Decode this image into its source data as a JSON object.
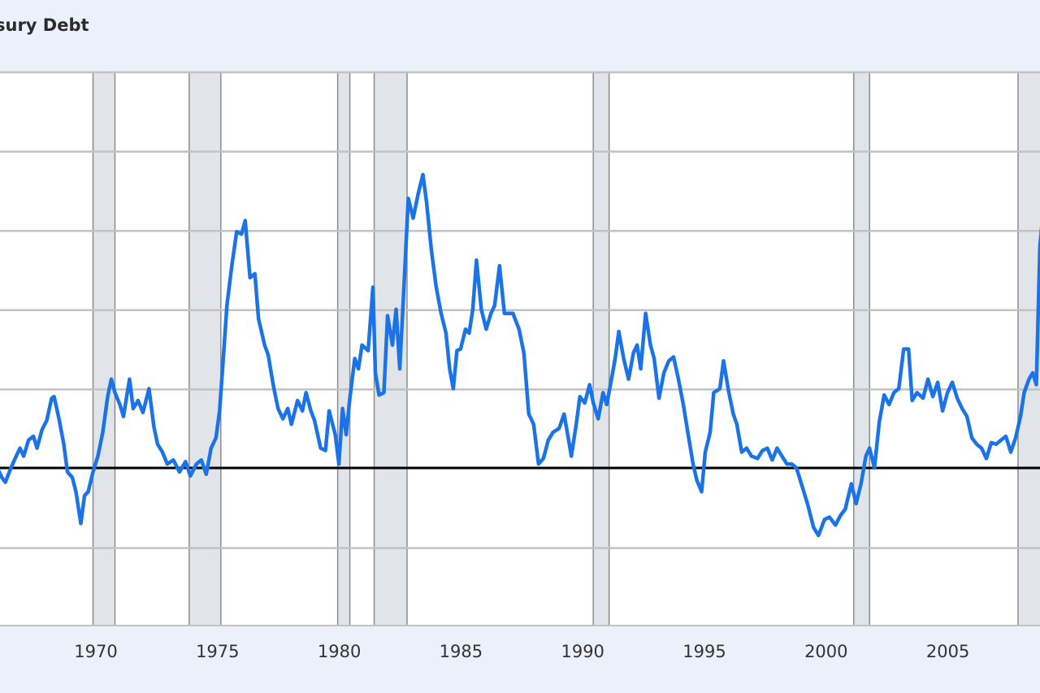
{
  "title_fragment": "sury Debt",
  "colors": {
    "background": "#eaf1fb",
    "plot_background": "#ffffff",
    "grid": "#c2c2c2",
    "recession_fill": "#e1e5ea",
    "recession_edge": "#8c8c8c",
    "series": "#1a73e8",
    "zero_line": "#000000"
  },
  "chart_data": {
    "type": "line",
    "title": "sury Debt",
    "xlabel": "",
    "ylabel": "",
    "x_range": [
      1965.85,
      2008.95
    ],
    "x_ticks": [
      1970,
      1975,
      1980,
      1985,
      1990,
      1995,
      2000,
      2005
    ],
    "x_tick_labels": [
      "1970",
      "1975",
      "1980",
      "1985",
      "1990",
      "1995",
      "2000",
      "2005"
    ],
    "y_gridlines": 7,
    "grid": true,
    "legend": "none",
    "reference_line": {
      "value": 0,
      "position": "horizontal"
    },
    "y_values_note": "y-axis tick labels not visible; series values given relative to the zero line in units of one gridline spacing",
    "recession_bands": [
      {
        "start": 1969.95,
        "end": 1970.85
      },
      {
        "start": 1973.9,
        "end": 1975.2
      },
      {
        "start": 1980.0,
        "end": 1980.5
      },
      {
        "start": 1981.5,
        "end": 1982.85
      },
      {
        "start": 1990.5,
        "end": 1991.15
      },
      {
        "start": 2001.2,
        "end": 2001.85
      },
      {
        "start": 2007.95,
        "end": 2008.95
      }
    ],
    "series": [
      {
        "points": [
          [
            1965.85,
            0.02
          ],
          [
            1966.0,
            0.01
          ],
          [
            1966.2,
            -0.12
          ],
          [
            1966.35,
            -0.18
          ],
          [
            1966.55,
            -0.02
          ],
          [
            1966.75,
            0.12
          ],
          [
            1966.95,
            0.25
          ],
          [
            1967.1,
            0.15
          ],
          [
            1967.3,
            0.35
          ],
          [
            1967.5,
            0.4
          ],
          [
            1967.65,
            0.25
          ],
          [
            1967.85,
            0.48
          ],
          [
            1968.05,
            0.6
          ],
          [
            1968.25,
            0.88
          ],
          [
            1968.35,
            0.9
          ],
          [
            1968.55,
            0.62
          ],
          [
            1968.75,
            0.3
          ],
          [
            1968.9,
            -0.05
          ],
          [
            1969.1,
            -0.12
          ],
          [
            1969.25,
            -0.3
          ],
          [
            1969.45,
            -0.7
          ],
          [
            1969.6,
            -0.35
          ],
          [
            1969.75,
            -0.3
          ],
          [
            1969.95,
            -0.05
          ],
          [
            1970.15,
            0.15
          ],
          [
            1970.35,
            0.45
          ],
          [
            1970.55,
            0.9
          ],
          [
            1970.7,
            1.12
          ],
          [
            1970.85,
            0.95
          ],
          [
            1971.05,
            0.8
          ],
          [
            1971.2,
            0.65
          ],
          [
            1971.45,
            1.12
          ],
          [
            1971.6,
            0.75
          ],
          [
            1971.8,
            0.85
          ],
          [
            1972.0,
            0.7
          ],
          [
            1972.25,
            1.0
          ],
          [
            1972.45,
            0.52
          ],
          [
            1972.6,
            0.3
          ],
          [
            1972.8,
            0.2
          ],
          [
            1973.0,
            0.05
          ],
          [
            1973.25,
            0.1
          ],
          [
            1973.5,
            -0.05
          ],
          [
            1973.75,
            0.08
          ],
          [
            1973.95,
            -0.1
          ],
          [
            1974.2,
            0.05
          ],
          [
            1974.4,
            0.1
          ],
          [
            1974.6,
            -0.08
          ],
          [
            1974.8,
            0.25
          ],
          [
            1975.0,
            0.38
          ],
          [
            1975.15,
            0.72
          ],
          [
            1975.3,
            1.38
          ],
          [
            1975.45,
            2.05
          ],
          [
            1975.65,
            2.55
          ],
          [
            1975.85,
            2.98
          ],
          [
            1976.05,
            2.95
          ],
          [
            1976.2,
            3.12
          ],
          [
            1976.4,
            2.4
          ],
          [
            1976.6,
            2.45
          ],
          [
            1976.75,
            1.88
          ],
          [
            1977.0,
            1.55
          ],
          [
            1977.15,
            1.42
          ],
          [
            1977.35,
            1.05
          ],
          [
            1977.55,
            0.75
          ],
          [
            1977.75,
            0.62
          ],
          [
            1977.95,
            0.75
          ],
          [
            1978.1,
            0.55
          ],
          [
            1978.35,
            0.85
          ],
          [
            1978.55,
            0.72
          ],
          [
            1978.7,
            0.95
          ],
          [
            1978.9,
            0.72
          ],
          [
            1979.05,
            0.6
          ],
          [
            1979.3,
            0.25
          ],
          [
            1979.5,
            0.22
          ],
          [
            1979.65,
            0.72
          ],
          [
            1979.9,
            0.42
          ],
          [
            1980.05,
            0.05
          ],
          [
            1980.2,
            0.75
          ],
          [
            1980.35,
            0.42
          ],
          [
            1980.5,
            0.88
          ],
          [
            1980.7,
            1.38
          ],
          [
            1980.85,
            1.25
          ],
          [
            1981.0,
            1.55
          ],
          [
            1981.25,
            1.48
          ],
          [
            1981.45,
            2.28
          ],
          [
            1981.55,
            1.2
          ],
          [
            1981.7,
            0.92
          ],
          [
            1981.9,
            0.95
          ],
          [
            1982.05,
            1.92
          ],
          [
            1982.25,
            1.55
          ],
          [
            1982.4,
            2.0
          ],
          [
            1982.55,
            1.25
          ],
          [
            1982.75,
            2.45
          ],
          [
            1982.9,
            3.4
          ],
          [
            1983.1,
            3.15
          ],
          [
            1983.3,
            3.45
          ],
          [
            1983.5,
            3.7
          ],
          [
            1983.65,
            3.35
          ],
          [
            1983.85,
            2.75
          ],
          [
            1984.05,
            2.28
          ],
          [
            1984.25,
            1.95
          ],
          [
            1984.45,
            1.7
          ],
          [
            1984.6,
            1.25
          ],
          [
            1984.75,
            1.0
          ],
          [
            1984.9,
            1.48
          ],
          [
            1985.05,
            1.5
          ],
          [
            1985.25,
            1.75
          ],
          [
            1985.4,
            1.7
          ],
          [
            1985.55,
            2.0
          ],
          [
            1985.7,
            2.62
          ],
          [
            1985.9,
            2.0
          ],
          [
            1986.1,
            1.75
          ],
          [
            1986.3,
            1.95
          ],
          [
            1986.45,
            2.05
          ],
          [
            1986.65,
            2.55
          ],
          [
            1986.85,
            1.95
          ],
          [
            1987.0,
            1.95
          ],
          [
            1987.2,
            1.95
          ],
          [
            1987.45,
            1.75
          ],
          [
            1987.65,
            1.45
          ],
          [
            1987.85,
            0.68
          ],
          [
            1988.05,
            0.55
          ],
          [
            1988.25,
            0.05
          ],
          [
            1988.45,
            0.12
          ],
          [
            1988.65,
            0.35
          ],
          [
            1988.85,
            0.45
          ],
          [
            1989.1,
            0.5
          ],
          [
            1989.3,
            0.68
          ],
          [
            1989.45,
            0.42
          ],
          [
            1989.6,
            0.15
          ],
          [
            1989.8,
            0.55
          ],
          [
            1989.95,
            0.9
          ],
          [
            1990.15,
            0.82
          ],
          [
            1990.35,
            1.05
          ],
          [
            1990.5,
            0.82
          ],
          [
            1990.7,
            0.62
          ],
          [
            1990.9,
            0.95
          ],
          [
            1991.05,
            0.8
          ],
          [
            1991.25,
            1.12
          ],
          [
            1991.4,
            1.38
          ],
          [
            1991.55,
            1.72
          ],
          [
            1991.75,
            1.38
          ],
          [
            1991.95,
            1.12
          ],
          [
            1992.15,
            1.45
          ],
          [
            1992.3,
            1.55
          ],
          [
            1992.45,
            1.25
          ],
          [
            1992.65,
            1.95
          ],
          [
            1992.85,
            1.55
          ],
          [
            1993.0,
            1.38
          ],
          [
            1993.2,
            0.88
          ],
          [
            1993.4,
            1.2
          ],
          [
            1993.6,
            1.35
          ],
          [
            1993.8,
            1.4
          ],
          [
            1994.0,
            1.12
          ],
          [
            1994.2,
            0.8
          ],
          [
            1994.4,
            0.42
          ],
          [
            1994.6,
            0.05
          ],
          [
            1994.75,
            -0.15
          ],
          [
            1994.95,
            -0.3
          ],
          [
            1995.1,
            0.2
          ],
          [
            1995.3,
            0.45
          ],
          [
            1995.45,
            0.95
          ],
          [
            1995.7,
            1.0
          ],
          [
            1995.85,
            1.35
          ],
          [
            1996.05,
            0.98
          ],
          [
            1996.25,
            0.68
          ],
          [
            1996.4,
            0.55
          ],
          [
            1996.6,
            0.2
          ],
          [
            1996.8,
            0.25
          ],
          [
            1997.0,
            0.15
          ],
          [
            1997.25,
            0.12
          ],
          [
            1997.45,
            0.22
          ],
          [
            1997.65,
            0.25
          ],
          [
            1997.85,
            0.1
          ],
          [
            1998.05,
            0.25
          ],
          [
            1998.25,
            0.15
          ],
          [
            1998.45,
            0.05
          ],
          [
            1998.65,
            0.05
          ],
          [
            1998.85,
            0.0
          ],
          [
            1999.05,
            -0.2
          ],
          [
            1999.3,
            -0.45
          ],
          [
            1999.55,
            -0.75
          ],
          [
            1999.75,
            -0.85
          ],
          [
            2000.0,
            -0.65
          ],
          [
            2000.2,
            -0.62
          ],
          [
            2000.45,
            -0.72
          ],
          [
            2000.65,
            -0.6
          ],
          [
            2000.85,
            -0.52
          ],
          [
            2001.1,
            -0.2
          ],
          [
            2001.3,
            -0.45
          ],
          [
            2001.5,
            -0.2
          ],
          [
            2001.7,
            0.15
          ],
          [
            2001.85,
            0.25
          ],
          [
            2002.05,
            0.0
          ],
          [
            2002.25,
            0.58
          ],
          [
            2002.45,
            0.92
          ],
          [
            2002.65,
            0.8
          ],
          [
            2002.85,
            0.95
          ],
          [
            2003.05,
            1.0
          ],
          [
            2003.25,
            1.5
          ],
          [
            2003.45,
            1.5
          ],
          [
            2003.6,
            0.85
          ],
          [
            2003.8,
            0.95
          ],
          [
            2004.05,
            0.88
          ],
          [
            2004.25,
            1.12
          ],
          [
            2004.45,
            0.9
          ],
          [
            2004.65,
            1.08
          ],
          [
            2004.85,
            0.72
          ],
          [
            2005.05,
            0.95
          ],
          [
            2005.25,
            1.08
          ],
          [
            2005.45,
            0.88
          ],
          [
            2005.65,
            0.75
          ],
          [
            2005.85,
            0.65
          ],
          [
            2006.05,
            0.38
          ],
          [
            2006.25,
            0.3
          ],
          [
            2006.45,
            0.25
          ],
          [
            2006.65,
            0.12
          ],
          [
            2006.85,
            0.32
          ],
          [
            2007.05,
            0.3
          ],
          [
            2007.25,
            0.35
          ],
          [
            2007.45,
            0.4
          ],
          [
            2007.65,
            0.2
          ],
          [
            2007.85,
            0.38
          ],
          [
            2008.05,
            0.65
          ],
          [
            2008.2,
            0.95
          ],
          [
            2008.4,
            1.12
          ],
          [
            2008.55,
            1.2
          ],
          [
            2008.7,
            1.05
          ],
          [
            2008.85,
            2.8
          ],
          [
            2008.95,
            3.12
          ]
        ]
      }
    ]
  }
}
